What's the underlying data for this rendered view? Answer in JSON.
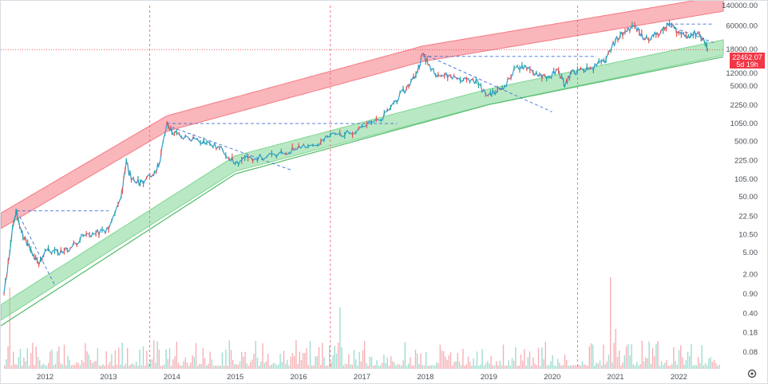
{
  "chart_data": {
    "type": "line",
    "title": "",
    "xlabel": "",
    "ylabel": "",
    "scale": "log",
    "grid": false,
    "ylim": [
      0.04,
      140000
    ],
    "x_tick_labels": [
      "2012",
      "2013",
      "2014",
      "2015",
      "2016",
      "2017",
      "2018",
      "2019",
      "2020",
      "2021",
      "2022"
    ],
    "y_tick_labels": [
      {
        "label": "140000.00",
        "value": 140000
      },
      {
        "label": "60000.00",
        "value": 60000
      },
      {
        "label": "18000.00",
        "value": 18000
      },
      {
        "label": "12000.00",
        "value": 12000
      },
      {
        "label": "5000.00",
        "value": 5000
      },
      {
        "label": "2250.00",
        "value": 2250
      },
      {
        "label": "1050.00",
        "value": 1050
      },
      {
        "label": "500.00",
        "value": 500
      },
      {
        "label": "225.00",
        "value": 225
      },
      {
        "label": "105.00",
        "value": 105
      },
      {
        "label": "50.00",
        "value": 50
      },
      {
        "label": "22.50",
        "value": 22.5
      },
      {
        "label": "10.50",
        "value": 10.5
      },
      {
        "label": "5.00",
        "value": 5
      },
      {
        "label": "2.00",
        "value": 2
      },
      {
        "label": "0.90",
        "value": 0.9
      },
      {
        "label": "0.40",
        "value": 0.4
      },
      {
        "label": "0.18",
        "value": 0.18
      },
      {
        "label": "0.08",
        "value": 0.08
      }
    ],
    "current_price": {
      "label": "22452.07",
      "countdown": "5d 19h",
      "value": 22452.07
    },
    "price_series": [
      {
        "t": 2011.35,
        "v": 0.9
      },
      {
        "t": 2011.44,
        "v": 5
      },
      {
        "t": 2011.5,
        "v": 17
      },
      {
        "t": 2011.55,
        "v": 28
      },
      {
        "t": 2011.6,
        "v": 14
      },
      {
        "t": 2011.7,
        "v": 8
      },
      {
        "t": 2011.8,
        "v": 4.5
      },
      {
        "t": 2011.9,
        "v": 3
      },
      {
        "t": 2012.0,
        "v": 5.5
      },
      {
        "t": 2012.2,
        "v": 5
      },
      {
        "t": 2012.4,
        "v": 6
      },
      {
        "t": 2012.6,
        "v": 10
      },
      {
        "t": 2012.8,
        "v": 11
      },
      {
        "t": 2013.0,
        "v": 13
      },
      {
        "t": 2013.2,
        "v": 50
      },
      {
        "t": 2013.28,
        "v": 230
      },
      {
        "t": 2013.36,
        "v": 100
      },
      {
        "t": 2013.5,
        "v": 90
      },
      {
        "t": 2013.7,
        "v": 125
      },
      {
        "t": 2013.8,
        "v": 200
      },
      {
        "t": 2013.92,
        "v": 1050
      },
      {
        "t": 2014.0,
        "v": 750
      },
      {
        "t": 2014.15,
        "v": 600
      },
      {
        "t": 2014.4,
        "v": 550
      },
      {
        "t": 2014.6,
        "v": 450
      },
      {
        "t": 2014.8,
        "v": 350
      },
      {
        "t": 2015.0,
        "v": 200
      },
      {
        "t": 2015.2,
        "v": 250
      },
      {
        "t": 2015.5,
        "v": 265
      },
      {
        "t": 2015.8,
        "v": 300
      },
      {
        "t": 2016.0,
        "v": 420
      },
      {
        "t": 2016.3,
        "v": 430
      },
      {
        "t": 2016.5,
        "v": 650
      },
      {
        "t": 2016.8,
        "v": 700
      },
      {
        "t": 2017.0,
        "v": 950
      },
      {
        "t": 2017.3,
        "v": 1200
      },
      {
        "t": 2017.5,
        "v": 2500
      },
      {
        "t": 2017.7,
        "v": 4500
      },
      {
        "t": 2017.85,
        "v": 8000
      },
      {
        "t": 2017.96,
        "v": 19000
      },
      {
        "t": 2018.05,
        "v": 12000
      },
      {
        "t": 2018.2,
        "v": 8000
      },
      {
        "t": 2018.4,
        "v": 7500
      },
      {
        "t": 2018.6,
        "v": 6500
      },
      {
        "t": 2018.8,
        "v": 6300
      },
      {
        "t": 2018.95,
        "v": 3500
      },
      {
        "t": 2019.1,
        "v": 3800
      },
      {
        "t": 2019.25,
        "v": 5000
      },
      {
        "t": 2019.45,
        "v": 11500
      },
      {
        "t": 2019.6,
        "v": 10000
      },
      {
        "t": 2019.8,
        "v": 8000
      },
      {
        "t": 2019.95,
        "v": 7200
      },
      {
        "t": 2020.1,
        "v": 9500
      },
      {
        "t": 2020.2,
        "v": 5000
      },
      {
        "t": 2020.3,
        "v": 8800
      },
      {
        "t": 2020.5,
        "v": 9300
      },
      {
        "t": 2020.7,
        "v": 11500
      },
      {
        "t": 2020.85,
        "v": 15000
      },
      {
        "t": 2021.0,
        "v": 33000
      },
      {
        "t": 2021.15,
        "v": 48000
      },
      {
        "t": 2021.3,
        "v": 61000
      },
      {
        "t": 2021.45,
        "v": 35000
      },
      {
        "t": 2021.6,
        "v": 40000
      },
      {
        "t": 2021.75,
        "v": 50000
      },
      {
        "t": 2021.85,
        "v": 67000
      },
      {
        "t": 2022.0,
        "v": 45000
      },
      {
        "t": 2022.15,
        "v": 40000
      },
      {
        "t": 2022.3,
        "v": 46000
      },
      {
        "t": 2022.4,
        "v": 32000
      },
      {
        "t": 2022.45,
        "v": 22452
      }
    ],
    "bands": [
      {
        "name": "upper-red-band",
        "color": "#f47a84",
        "anchors": [
          {
            "t": 2011.35,
            "v": 20
          },
          {
            "t": 2013.92,
            "v": 1050
          },
          {
            "t": 2017.96,
            "v": 19000
          },
          {
            "t": 2022.5,
            "v": 140000
          }
        ],
        "width_factor": 1.9
      },
      {
        "name": "lower-green-band",
        "color": "#7fd693",
        "anchors": [
          {
            "t": 2011.35,
            "v": 0.45
          },
          {
            "t": 2015.0,
            "v": 200
          },
          {
            "t": 2019.0,
            "v": 3200
          },
          {
            "t": 2022.5,
            "v": 22000
          }
        ],
        "width_factor": 1.9
      },
      {
        "name": "lower-green-line",
        "color": "#5bbf72",
        "anchors": [
          {
            "t": 2011.35,
            "v": 0.26
          },
          {
            "t": 2015.0,
            "v": 130
          },
          {
            "t": 2019.0,
            "v": 2300
          },
          {
            "t": 2022.5,
            "v": 15000
          }
        ],
        "width_factor": 1.0
      }
    ],
    "dashed_trend_lines": [
      {
        "from": {
          "t": 2011.55,
          "v": 28
        },
        "to": {
          "t": 2013.0,
          "v": 28
        }
      },
      {
        "from": {
          "t": 2011.6,
          "v": 22
        },
        "to": {
          "t": 2012.15,
          "v": 1.3
        }
      },
      {
        "from": {
          "t": 2013.92,
          "v": 1050
        },
        "to": {
          "t": 2017.55,
          "v": 1050
        }
      },
      {
        "from": {
          "t": 2014.0,
          "v": 900
        },
        "to": {
          "t": 2015.9,
          "v": 150
        }
      },
      {
        "from": {
          "t": 2017.96,
          "v": 19000
        },
        "to": {
          "t": 2020.0,
          "v": 1700
        }
      },
      {
        "from": {
          "t": 2017.96,
          "v": 17000
        },
        "to": {
          "t": 2020.7,
          "v": 17000
        }
      },
      {
        "from": {
          "t": 2021.85,
          "v": 65000
        },
        "to": {
          "t": 2022.55,
          "v": 65000
        }
      },
      {
        "from": {
          "t": 2021.85,
          "v": 60000
        },
        "to": {
          "t": 2022.55,
          "v": 30000
        }
      }
    ],
    "vertical_markers": [
      2013.65,
      2016.5,
      2020.4
    ],
    "volume_bars_seed": 73
  }
}
